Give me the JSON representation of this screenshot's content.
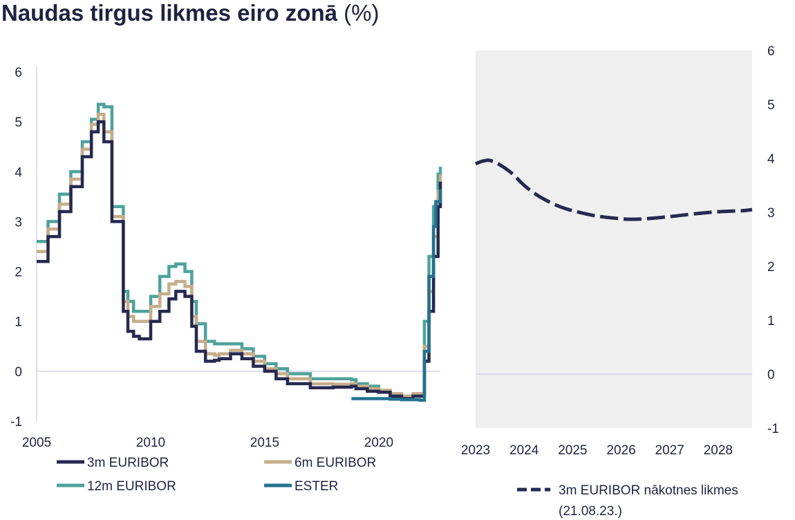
{
  "title": "Naudas tirgus likmes eiro zonā",
  "title_unit": "(%)",
  "colors": {
    "text": "#1f2341",
    "euribor3m": "#262950",
    "euribor6m": "#c6ad8a",
    "euribor12m": "#4da39b",
    "ester": "#23728f",
    "zero_line": "#c9cbe4",
    "panel_bg": "#efefef"
  },
  "chart_data": [
    {
      "type": "line",
      "title": "",
      "xlim": [
        2005,
        2022.7
      ],
      "ylim": [
        -1,
        6
      ],
      "x_ticks": [
        "2005",
        "2010",
        "2015",
        "2020"
      ],
      "x_tick_values": [
        2005,
        2010,
        2015,
        2020
      ],
      "y_ticks": [
        "-1",
        "0",
        "1",
        "2",
        "3",
        "4",
        "5",
        "6"
      ],
      "y_tick_values": [
        -1,
        0,
        1,
        2,
        3,
        4,
        5,
        6
      ],
      "legend": [
        "3m EURIBOR",
        "6m EURIBOR",
        "12m EURIBOR",
        "ESTER"
      ],
      "series": [
        {
          "name": "3m EURIBOR",
          "color": "#262950",
          "x": [
            2005.0,
            2005.5,
            2006.0,
            2006.5,
            2007.0,
            2007.4,
            2007.7,
            2007.95,
            2008.3,
            2008.8,
            2009.0,
            2009.25,
            2009.5,
            2010.0,
            2010.4,
            2010.8,
            2011.1,
            2011.5,
            2011.8,
            2012.0,
            2012.4,
            2012.8,
            2013.0,
            2013.5,
            2014.0,
            2014.5,
            2015.0,
            2015.5,
            2016.0,
            2017.0,
            2018.0,
            2018.8,
            2019.0,
            2019.5,
            2020.0,
            2020.5,
            2021.0,
            2021.5,
            2022.0,
            2022.2,
            2022.4,
            2022.6,
            2022.7
          ],
          "y": [
            2.2,
            2.7,
            3.2,
            3.7,
            4.3,
            4.8,
            5.0,
            4.6,
            3.0,
            1.2,
            0.8,
            0.7,
            0.65,
            1.0,
            1.2,
            1.45,
            1.6,
            1.5,
            0.9,
            0.4,
            0.2,
            0.22,
            0.25,
            0.35,
            0.25,
            0.1,
            0.0,
            -0.15,
            -0.25,
            -0.33,
            -0.32,
            -0.3,
            -0.35,
            -0.4,
            -0.42,
            -0.5,
            -0.55,
            -0.5,
            0.2,
            1.2,
            2.3,
            3.3,
            3.8
          ]
        },
        {
          "name": "6m EURIBOR",
          "color": "#c6ad8a",
          "x": [
            2005.0,
            2005.5,
            2006.0,
            2006.5,
            2007.0,
            2007.4,
            2007.7,
            2007.95,
            2008.3,
            2008.8,
            2009.0,
            2009.25,
            2009.5,
            2010.0,
            2010.4,
            2010.8,
            2011.1,
            2011.5,
            2011.8,
            2012.0,
            2012.4,
            2012.8,
            2013.0,
            2013.5,
            2014.0,
            2014.5,
            2015.0,
            2015.5,
            2016.0,
            2017.0,
            2018.0,
            2018.8,
            2019.0,
            2019.5,
            2020.0,
            2020.5,
            2021.0,
            2021.5,
            2022.0,
            2022.2,
            2022.4,
            2022.6,
            2022.7
          ],
          "y": [
            2.4,
            2.85,
            3.35,
            3.85,
            4.45,
            4.95,
            5.15,
            4.8,
            3.1,
            1.4,
            1.1,
            1.0,
            1.0,
            1.3,
            1.55,
            1.75,
            1.8,
            1.7,
            1.1,
            0.6,
            0.35,
            0.32,
            0.35,
            0.42,
            0.35,
            0.2,
            0.05,
            -0.05,
            -0.15,
            -0.25,
            -0.26,
            -0.25,
            -0.3,
            -0.35,
            -0.38,
            -0.45,
            -0.5,
            -0.45,
            0.5,
            1.6,
            2.7,
            3.6,
            3.95
          ]
        },
        {
          "name": "12m EURIBOR",
          "color": "#4da39b",
          "x": [
            2005.0,
            2005.5,
            2006.0,
            2006.5,
            2007.0,
            2007.4,
            2007.7,
            2007.95,
            2008.3,
            2008.8,
            2009.0,
            2009.25,
            2009.5,
            2010.0,
            2010.4,
            2010.8,
            2011.1,
            2011.5,
            2011.8,
            2012.0,
            2012.4,
            2012.8,
            2013.0,
            2013.5,
            2014.0,
            2014.5,
            2015.0,
            2015.5,
            2016.0,
            2017.0,
            2018.0,
            2018.8,
            2019.0,
            2019.5,
            2020.0,
            2020.5,
            2021.0,
            2021.5,
            2022.0,
            2022.2,
            2022.4,
            2022.6,
            2022.7
          ],
          "y": [
            2.6,
            3.0,
            3.55,
            4.0,
            4.6,
            5.05,
            5.35,
            5.3,
            3.3,
            1.6,
            1.4,
            1.2,
            1.2,
            1.5,
            1.9,
            2.1,
            2.15,
            2.0,
            1.4,
            0.95,
            0.6,
            0.55,
            0.55,
            0.55,
            0.45,
            0.3,
            0.15,
            0.05,
            -0.05,
            -0.15,
            -0.15,
            -0.17,
            -0.25,
            -0.3,
            -0.4,
            -0.48,
            -0.5,
            -0.48,
            1.0,
            2.3,
            3.3,
            3.95,
            4.1
          ]
        },
        {
          "name": "ESTER",
          "color": "#23728f",
          "x": [
            2018.8,
            2019.5,
            2020.0,
            2020.5,
            2021.0,
            2021.5,
            2021.8,
            2022.0,
            2022.2,
            2022.4,
            2022.5,
            2022.7
          ],
          "y": [
            -0.55,
            -0.55,
            -0.55,
            -0.56,
            -0.57,
            -0.57,
            -0.58,
            0.4,
            1.9,
            2.9,
            3.4,
            3.65
          ]
        }
      ]
    },
    {
      "type": "line",
      "title": "",
      "xlim": [
        2023,
        2028.7
      ],
      "ylim": [
        -1,
        6
      ],
      "x_ticks": [
        "2023",
        "2024",
        "2025",
        "2026",
        "2027",
        "2028"
      ],
      "x_tick_values": [
        2023,
        2024,
        2025,
        2026,
        2027,
        2028
      ],
      "y_ticks": [
        "-1",
        "0",
        "1",
        "2",
        "3",
        "4",
        "5",
        "6"
      ],
      "y_tick_values": [
        -1,
        0,
        1,
        2,
        3,
        4,
        5,
        6
      ],
      "legend": [
        "3m EURIBOR nākotnes likmes",
        "(21.08.23.)"
      ],
      "series": [
        {
          "name": "3m EURIBOR nākotnes likmes (21.08.23.)",
          "color": "#262950",
          "x": [
            2023.0,
            2023.15,
            2023.3,
            2023.5,
            2023.75,
            2024.0,
            2024.25,
            2024.5,
            2024.75,
            2025.0,
            2025.5,
            2026.0,
            2026.2,
            2026.5,
            2027.0,
            2027.5,
            2028.0,
            2028.5,
            2028.7
          ],
          "y": [
            3.9,
            3.95,
            3.96,
            3.88,
            3.72,
            3.5,
            3.33,
            3.2,
            3.1,
            3.03,
            2.93,
            2.88,
            2.87,
            2.88,
            2.92,
            2.97,
            3.01,
            3.03,
            3.05
          ]
        }
      ]
    }
  ]
}
